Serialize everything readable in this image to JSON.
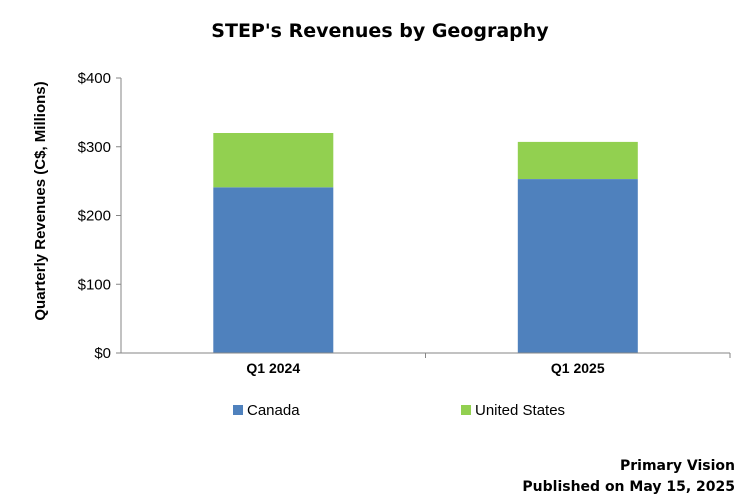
{
  "chart_data": {
    "type": "bar",
    "stacked": true,
    "title": "STEP's Revenues by Geography",
    "xlabel": "",
    "ylabel": "Quarterly Revenues (C$, Millions)",
    "categories": [
      "Q1 2024",
      "Q1 2025"
    ],
    "series": [
      {
        "name": "Canada",
        "values": [
          241,
          253
        ],
        "color": "#4f81bd"
      },
      {
        "name": "United States",
        "values": [
          79,
          54
        ],
        "color": "#92d050"
      }
    ],
    "ylim": [
      0,
      400
    ],
    "yticks": [
      0,
      100,
      200,
      300,
      400
    ],
    "ytick_labels": [
      "$0",
      "$100",
      "$200",
      "$300",
      "$400"
    ],
    "grid": false,
    "legend_position": "bottom"
  },
  "footer": {
    "source": "Primary Vision",
    "published": "Published on May 15, 2025"
  }
}
